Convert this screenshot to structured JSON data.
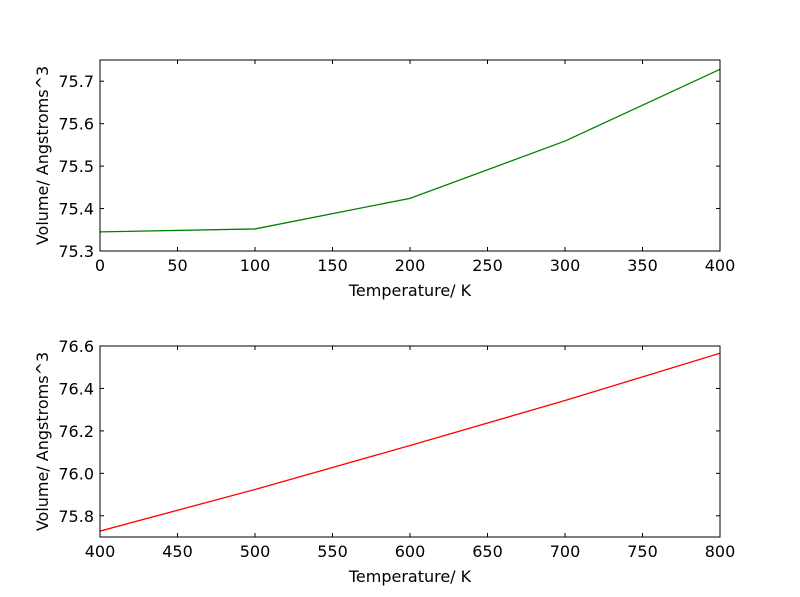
{
  "chart_data": [
    {
      "type": "line",
      "title": "",
      "xlabel": "Temperature/ K",
      "ylabel": "Volume/ Angstroms^3",
      "xlim": [
        0,
        400
      ],
      "ylim": [
        75.3,
        75.75
      ],
      "xticks": [
        0,
        50,
        100,
        150,
        200,
        250,
        300,
        350,
        400
      ],
      "yticks": [
        75.3,
        75.4,
        75.5,
        75.6,
        75.7
      ],
      "ytick_decimals": 1,
      "grid": false,
      "series": [
        {
          "color": "#008000",
          "x": [
            0,
            100,
            200,
            300,
            400
          ],
          "y": [
            75.345,
            75.352,
            75.424,
            75.559,
            75.728
          ]
        }
      ]
    },
    {
      "type": "line",
      "title": "",
      "xlabel": "Temperature/ K",
      "ylabel": "Volume/ Angstroms^3",
      "xlim": [
        400,
        800
      ],
      "ylim": [
        75.7,
        76.6
      ],
      "xticks": [
        400,
        450,
        500,
        550,
        600,
        650,
        700,
        750,
        800
      ],
      "yticks": [
        75.8,
        76.0,
        76.2,
        76.4,
        76.6
      ],
      "ytick_decimals": 1,
      "grid": false,
      "series": [
        {
          "color": "#ff0000",
          "x": [
            400,
            500,
            600,
            700,
            800
          ],
          "y": [
            75.728,
            75.924,
            76.131,
            76.343,
            76.566
          ]
        }
      ]
    }
  ]
}
